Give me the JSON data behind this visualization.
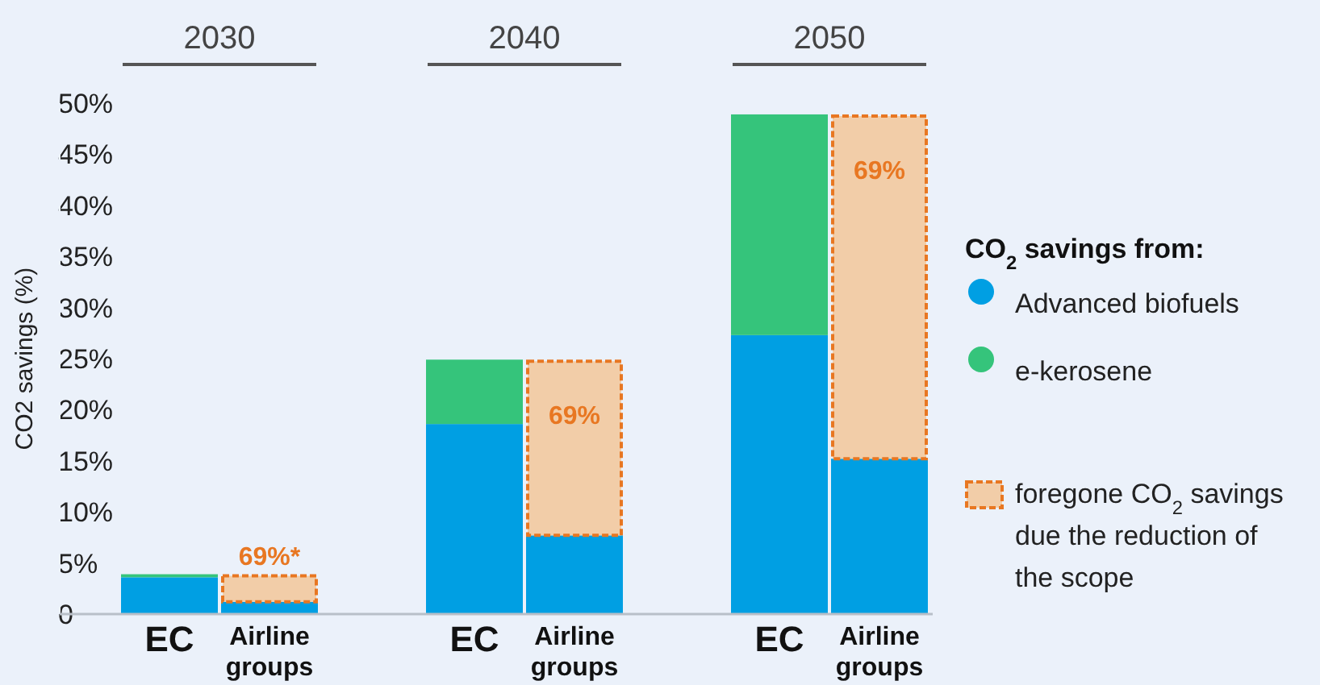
{
  "chart_data": {
    "type": "bar",
    "stacked": true,
    "ylabel": "CO2 savings (%)",
    "legend_title": "CO$_{2}$ savings from:",
    "legend": "right",
    "categories": [
      "EC",
      "Airline groups",
      "EC",
      "Airline groups",
      "EC",
      "Airline groups"
    ],
    "ylim": [
      0,
      50
    ],
    "yticks": [
      {
        "value": 0,
        "label": "0"
      },
      {
        "value": 5,
        "label": "5%"
      },
      {
        "value": 10,
        "label": "10%"
      },
      {
        "value": 15,
        "label": "15%"
      },
      {
        "value": 20,
        "label": "20%"
      },
      {
        "value": 25,
        "label": "25%"
      },
      {
        "value": 30,
        "label": "30%"
      },
      {
        "value": 35,
        "label": "35%"
      },
      {
        "value": 40,
        "label": "40%"
      },
      {
        "value": 45,
        "label": "45%"
      },
      {
        "value": 50,
        "label": "50%"
      }
    ],
    "annotations": [
      "2030",
      "2040",
      "2050",
      "69%*",
      "69%",
      "69%"
    ],
    "series": [
      {
        "name": "Advanced biofuels",
        "color": "#009fe3",
        "values": [
          3.6,
          1.2,
          18.6,
          7.7,
          27.3,
          15.2
        ]
      },
      {
        "name": "e-kerosene",
        "color": "#35c47b",
        "values": [
          0.3,
          null,
          6.3,
          null,
          21.6,
          null
        ]
      },
      {
        "name": "foregone CO$_{2}$ savings due the reduction of the scope",
        "color": "#f2cda8",
        "line_style": "dashed",
        "values": [
          null,
          2.7,
          null,
          17.2,
          null,
          33.7
        ]
      }
    ]
  }
}
